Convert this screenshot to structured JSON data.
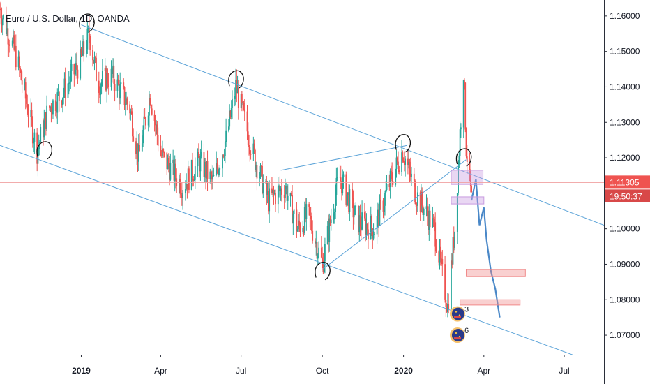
{
  "chart_data": {
    "type": "candlestick",
    "title": "Euro / U.S. Dollar, 1D, OANDA",
    "ylim": [
      1.0645,
      1.1645
    ],
    "y_ticks": [
      "1.16000",
      "1.15000",
      "1.14000",
      "1.13000",
      "1.12000",
      "1.11000",
      "1.10000",
      "1.09000",
      "1.08000",
      "1.07000"
    ],
    "y_tick_values": [
      1.16,
      1.15,
      1.14,
      1.13,
      1.12,
      1.11,
      1.1,
      1.09,
      1.08,
      1.07
    ],
    "x_range": [
      "2018-10-01",
      "2020-08-15"
    ],
    "x_ticks": [
      {
        "date": "2019-01-01",
        "label": "2019",
        "bold": true
      },
      {
        "date": "2019-04-01",
        "label": "Apr",
        "bold": false
      },
      {
        "date": "2019-07-01",
        "label": "Jul",
        "bold": false
      },
      {
        "date": "2019-10-01",
        "label": "Oct",
        "bold": false
      },
      {
        "date": "2020-01-01",
        "label": "2020",
        "bold": true
      },
      {
        "date": "2020-04-01",
        "label": "Apr",
        "bold": false
      },
      {
        "date": "2020-07-01",
        "label": "Jul",
        "bold": false
      }
    ],
    "price_path": [
      [
        "2018-10-01",
        1.162
      ],
      [
        "2018-10-20",
        1.148
      ],
      [
        "2018-11-12",
        1.122
      ],
      [
        "2018-11-25",
        1.134
      ],
      [
        "2018-12-10",
        1.138
      ],
      [
        "2018-12-31",
        1.147
      ],
      [
        "2019-01-10",
        1.155
      ],
      [
        "2019-01-20",
        1.141
      ],
      [
        "2019-02-05",
        1.143
      ],
      [
        "2019-02-25",
        1.134
      ],
      [
        "2019-03-07",
        1.12
      ],
      [
        "2019-03-20",
        1.138
      ],
      [
        "2019-04-01",
        1.121
      ],
      [
        "2019-04-26",
        1.112
      ],
      [
        "2019-05-15",
        1.119
      ],
      [
        "2019-05-30",
        1.113
      ],
      [
        "2019-06-15",
        1.126
      ],
      [
        "2019-06-25",
        1.14
      ],
      [
        "2019-07-15",
        1.121
      ],
      [
        "2019-08-01",
        1.108
      ],
      [
        "2019-08-20",
        1.112
      ],
      [
        "2019-09-03",
        1.1
      ],
      [
        "2019-09-15",
        1.104
      ],
      [
        "2019-10-01",
        1.09
      ],
      [
        "2019-10-20",
        1.115
      ],
      [
        "2019-11-10",
        1.102
      ],
      [
        "2019-11-29",
        1.1
      ],
      [
        "2019-12-15",
        1.112
      ],
      [
        "2019-12-31",
        1.122
      ],
      [
        "2020-01-15",
        1.11
      ],
      [
        "2020-02-05",
        1.1
      ],
      [
        "2020-02-20",
        1.078
      ],
      [
        "2020-02-28",
        1.1
      ],
      [
        "2020-03-09",
        1.145
      ],
      [
        "2020-03-12",
        1.123
      ],
      [
        "2020-03-18",
        1.108
      ]
    ],
    "projection": [
      [
        "2020-03-18",
        1.108
      ],
      [
        "2020-03-23",
        1.114
      ],
      [
        "2020-03-27",
        1.101
      ],
      [
        "2020-04-01",
        1.106
      ],
      [
        "2020-04-04",
        1.097
      ],
      [
        "2020-04-09",
        1.088
      ],
      [
        "2020-04-14",
        1.083
      ],
      [
        "2020-04-19",
        1.075
      ]
    ],
    "channel_upper": [
      [
        "2019-01-01",
        1.1575
      ],
      [
        "2020-08-15",
        1.101
      ]
    ],
    "channel_lower": [
      [
        "2018-10-01",
        1.1235
      ],
      [
        "2020-08-01",
        1.0625
      ]
    ],
    "rising_wedge_lower": [
      [
        "2019-10-01",
        1.0885
      ],
      [
        "2020-03-12",
        1.1195
      ]
    ],
    "rising_wedge_upper": [
      [
        "2019-08-15",
        1.1165
      ],
      [
        "2020-01-05",
        1.1235
      ]
    ],
    "current_price_line": 1.11305,
    "price_label": "1.11305",
    "countdown_label": "19:50:37",
    "zones": [
      {
        "from": "2020-02-24",
        "to": "2020-03-31",
        "y1": 1.1125,
        "y2": 1.1165,
        "color": "#c89be0"
      },
      {
        "from": "2020-02-24",
        "to": "2020-04-01",
        "y1": 1.107,
        "y2": 1.109,
        "color": "#c89be0"
      },
      {
        "from": "2020-03-12",
        "to": "2020-05-18",
        "y1": 1.0865,
        "y2": 1.0885,
        "color": "#f08a8a"
      },
      {
        "from": "2020-03-05",
        "to": "2020-05-12",
        "y1": 1.0785,
        "y2": 1.08,
        "color": "#f08a8a"
      }
    ],
    "swing_marks": [
      [
        "2019-01-07",
        1.158
      ],
      [
        "2018-11-20",
        1.122
      ],
      [
        "2019-06-25",
        1.142
      ],
      [
        "2019-10-01",
        1.088
      ],
      [
        "2019-12-31",
        1.124
      ],
      [
        "2020-03-09",
        1.12
      ]
    ],
    "events": [
      {
        "date": "2020-03-10",
        "y": 1.076,
        "label": "3"
      },
      {
        "date": "2020-03-10",
        "y": 1.07,
        "label": "6"
      }
    ],
    "colors": {
      "up": "#26a69a",
      "down": "#ef5350",
      "projection": "#4a88c8",
      "channel": "#5ba3d8",
      "price_line": "#f0a0a0",
      "price_badge": "#ef5350",
      "countdown_badge": "#d84848"
    },
    "grid": false
  }
}
